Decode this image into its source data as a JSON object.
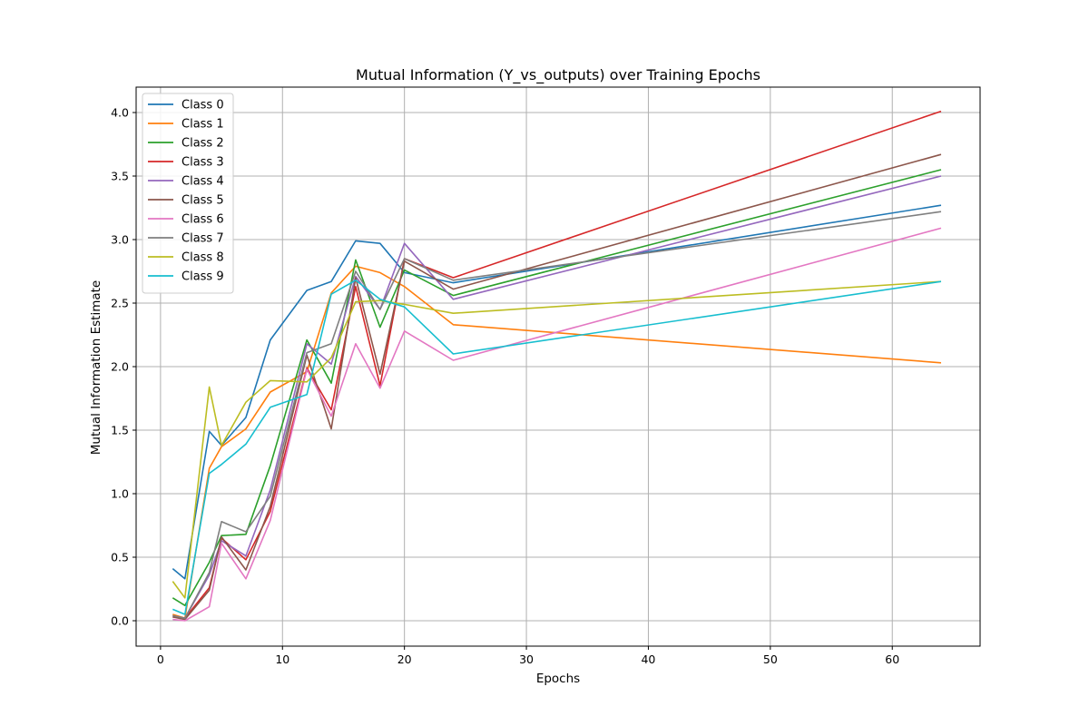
{
  "chart_data": {
    "type": "line",
    "title": "Mutual Information (Y_vs_outputs) over Training Epochs",
    "xlabel": "Epochs",
    "ylabel": "Mutual Information Estimate",
    "xlim": [
      -2,
      67.2
    ],
    "ylim": [
      -0.2,
      4.2
    ],
    "xticks": [
      0,
      10,
      20,
      30,
      40,
      50,
      60
    ],
    "yticks": [
      0.0,
      0.5,
      1.0,
      1.5,
      2.0,
      2.5,
      3.0,
      3.5,
      4.0
    ],
    "ytick_labels": [
      "0.0",
      "0.5",
      "1.0",
      "1.5",
      "2.0",
      "2.5",
      "3.0",
      "3.5",
      "4.0"
    ],
    "grid": true,
    "legend_position": "upper-left",
    "x": [
      1,
      2,
      4,
      5,
      7,
      9,
      12,
      14,
      16,
      18,
      20,
      24,
      64
    ],
    "series": [
      {
        "name": "Class 0",
        "color": "#1f77b4",
        "values": [
          0.41,
          0.33,
          1.49,
          1.38,
          1.6,
          2.21,
          2.6,
          2.67,
          2.99,
          2.97,
          2.74,
          2.66,
          3.27
        ]
      },
      {
        "name": "Class 1",
        "color": "#ff7f0e",
        "values": [
          0.05,
          0.02,
          1.2,
          1.37,
          1.51,
          1.8,
          1.96,
          2.58,
          2.79,
          2.74,
          2.63,
          2.33,
          2.03
        ]
      },
      {
        "name": "Class 2",
        "color": "#2ca02c",
        "values": [
          0.18,
          0.12,
          0.46,
          0.67,
          0.68,
          1.22,
          2.21,
          1.87,
          2.84,
          2.31,
          2.76,
          2.56,
          3.55
        ]
      },
      {
        "name": "Class 3",
        "color": "#d62728",
        "values": [
          0.04,
          0.02,
          0.26,
          0.65,
          0.48,
          0.86,
          1.99,
          1.66,
          2.63,
          1.85,
          2.85,
          2.7,
          4.01
        ]
      },
      {
        "name": "Class 4",
        "color": "#9467bd",
        "values": [
          0.03,
          0.02,
          0.36,
          0.63,
          0.51,
          1.03,
          2.18,
          2.02,
          2.71,
          2.45,
          2.97,
          2.53,
          3.5
        ]
      },
      {
        "name": "Class 5",
        "color": "#8c564b",
        "values": [
          0.03,
          0.01,
          0.24,
          0.66,
          0.4,
          0.9,
          2.09,
          1.51,
          2.7,
          1.94,
          2.83,
          2.61,
          3.67
        ]
      },
      {
        "name": "Class 6",
        "color": "#e377c2",
        "values": [
          0.01,
          0.0,
          0.11,
          0.61,
          0.33,
          0.79,
          1.98,
          1.61,
          2.18,
          1.83,
          2.28,
          2.05,
          3.09
        ]
      },
      {
        "name": "Class 7",
        "color": "#7f7f7f",
        "values": [
          0.04,
          0.02,
          0.38,
          0.78,
          0.7,
          0.98,
          2.11,
          2.18,
          2.75,
          2.45,
          2.85,
          2.68,
          3.22
        ]
      },
      {
        "name": "Class 8",
        "color": "#bcbd22",
        "values": [
          0.31,
          0.18,
          1.84,
          1.38,
          1.72,
          1.89,
          1.88,
          2.07,
          2.51,
          2.52,
          2.49,
          2.42,
          2.67
        ]
      },
      {
        "name": "Class 9",
        "color": "#17becf",
        "values": [
          0.09,
          0.05,
          1.16,
          1.23,
          1.39,
          1.68,
          1.78,
          2.57,
          2.68,
          2.53,
          2.47,
          2.1,
          2.67
        ]
      }
    ]
  }
}
